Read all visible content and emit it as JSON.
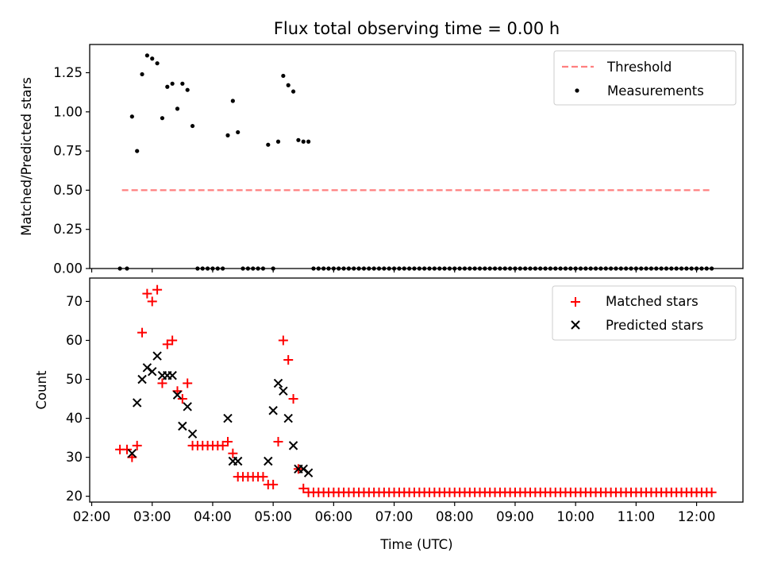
{
  "chart_data": [
    {
      "type": "scatter",
      "title": "Flux total observing time = 0.00 h",
      "ylabel": "Matched/Predicted stars",
      "xlabel": "",
      "x_axis_type": "time",
      "xlim": [
        "01:58",
        "12:46"
      ],
      "ylim": [
        0,
        1.43
      ],
      "yticks": [
        0,
        0.25,
        0.5,
        0.75,
        1.0,
        1.25
      ],
      "ytick_labels": [
        "0.00",
        "0.25",
        "0.50",
        "0.75",
        "1.00",
        "1.25"
      ],
      "xtick_labels_visible": false,
      "grid": false,
      "legend_placement": "top-right",
      "series": [
        {
          "name": "Threshold",
          "kind": "line",
          "style": "dashed",
          "color": "#ff7f7f",
          "x": [
            "02:30",
            "12:15"
          ],
          "y": [
            0.5,
            0.5
          ]
        },
        {
          "name": "Measurements",
          "kind": "scatter",
          "marker": "dot",
          "color": "#000000",
          "x": [
            "02:28",
            "02:35",
            "02:40",
            "02:45",
            "02:50",
            "02:55",
            "03:00",
            "03:05",
            "03:10",
            "03:15",
            "03:20",
            "03:25",
            "03:30",
            "03:35",
            "03:40",
            "03:45",
            "03:50",
            "03:55",
            "04:00",
            "04:05",
            "04:10",
            "04:15",
            "04:20",
            "04:25",
            "04:30",
            "04:35",
            "04:40",
            "04:45",
            "04:50",
            "04:55",
            "05:00",
            "05:05",
            "05:10",
            "05:15",
            "05:20",
            "05:25",
            "05:30",
            "05:35",
            "05:40"
          ],
          "y": [
            0,
            0,
            0.97,
            0.75,
            1.24,
            1.36,
            1.34,
            1.31,
            0.96,
            1.16,
            1.18,
            1.02,
            1.18,
            1.14,
            0.91,
            0,
            0,
            0,
            0,
            0,
            0,
            0.85,
            1.07,
            0.87,
            0,
            0,
            0,
            0,
            0,
            0.79,
            0,
            0.81,
            1.23,
            1.17,
            1.13,
            0.82,
            0.81,
            0.81,
            0
          ]
        },
        {
          "name": "Measurements (tail zeros)",
          "kind": "scatter",
          "marker": "dot",
          "color": "#000000",
          "x_start": "05:45",
          "x_end": "12:15",
          "x_step_minutes": 5,
          "y_constant": 0
        }
      ]
    },
    {
      "type": "scatter",
      "title": "",
      "ylabel": "Count",
      "xlabel": "Time (UTC)",
      "x_axis_type": "time",
      "xlim": [
        "01:58",
        "12:46"
      ],
      "ylim": [
        18.5,
        76
      ],
      "yticks": [
        20,
        30,
        40,
        50,
        60,
        70
      ],
      "xticks": [
        "02:00",
        "03:00",
        "04:00",
        "05:00",
        "06:00",
        "07:00",
        "08:00",
        "09:00",
        "10:00",
        "11:00",
        "12:00"
      ],
      "grid": false,
      "legend_placement": "top-right",
      "series": [
        {
          "name": "Matched stars",
          "kind": "scatter",
          "marker": "plus",
          "color": "#ff0000",
          "x": [
            "02:28",
            "02:35",
            "02:40",
            "02:45",
            "02:50",
            "02:55",
            "03:00",
            "03:05",
            "03:10",
            "03:15",
            "03:20",
            "03:25",
            "03:30",
            "03:35",
            "03:40",
            "03:45",
            "03:50",
            "03:55",
            "04:00",
            "04:05",
            "04:10",
            "04:15",
            "04:20",
            "04:25",
            "04:30",
            "04:35",
            "04:40",
            "04:45",
            "04:50",
            "04:55",
            "05:00",
            "05:05",
            "05:10",
            "05:15",
            "05:20",
            "05:25",
            "05:30",
            "05:35",
            "05:40"
          ],
          "y": [
            32,
            32,
            30,
            33,
            62,
            72,
            70,
            73,
            49,
            59,
            60,
            47,
            45,
            49,
            33,
            33,
            33,
            33,
            33,
            33,
            33,
            34,
            31,
            25,
            25,
            25,
            25,
            25,
            25,
            23,
            23,
            34,
            60,
            55,
            45,
            27,
            22,
            21,
            21
          ]
        },
        {
          "name": "Matched stars (tail)",
          "kind": "scatter",
          "marker": "plus",
          "color": "#ff0000",
          "x_start": "05:45",
          "x_end": "12:15",
          "x_step_minutes": 5,
          "y_constant": 21
        },
        {
          "name": "Predicted stars",
          "kind": "scatter",
          "marker": "x",
          "color": "#000000",
          "x": [
            "02:40",
            "02:45",
            "02:50",
            "02:55",
            "03:00",
            "03:05",
            "03:10",
            "03:15",
            "03:20",
            "03:25",
            "03:30",
            "03:35",
            "03:40",
            "04:15",
            "04:20",
            "04:25",
            "04:55",
            "05:00",
            "05:05",
            "05:10",
            "05:15",
            "05:20",
            "05:25",
            "05:30",
            "05:35"
          ],
          "y": [
            31,
            44,
            50,
            53,
            52,
            56,
            51,
            51,
            51,
            46,
            38,
            43,
            36,
            40,
            29,
            29,
            29,
            42,
            49,
            47,
            40,
            33,
            27,
            27,
            26
          ]
        }
      ]
    }
  ]
}
